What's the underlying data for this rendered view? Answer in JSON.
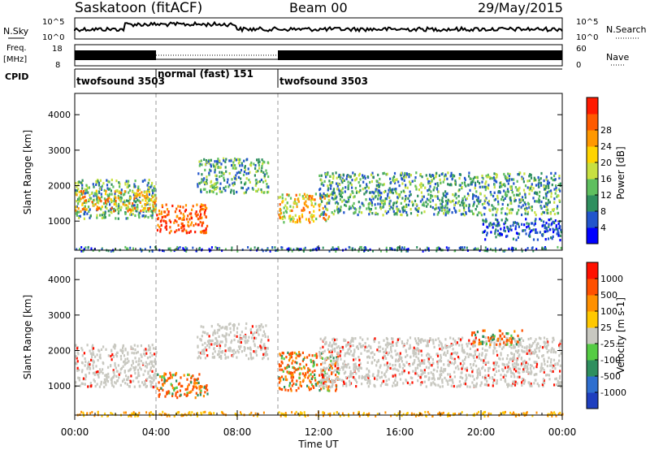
{
  "header": {
    "station": "Saskatoon (fitACF)",
    "beam": "Beam 00",
    "date": "29/May/2015"
  },
  "top_panels": {
    "nsky": {
      "label": "N.Sky",
      "ticks": [
        "10^5",
        "10^0"
      ]
    },
    "nsearch": {
      "label": "N.Search",
      "ticks": [
        "10^5",
        "10^0"
      ]
    },
    "freq": {
      "label_line1": "Freq.",
      "label_line2": "[MHz]",
      "ticks": [
        "18",
        "8"
      ]
    },
    "nave": {
      "label": "Nave",
      "ticks": [
        "60",
        "0"
      ]
    },
    "cpid": {
      "label": "CPID",
      "segments": [
        {
          "label": "twofsound 3503",
          "start": 0,
          "end": 4
        },
        {
          "label": "normal (fast) 151",
          "start": 4,
          "end": 10
        },
        {
          "label": "twofsound 3503",
          "start": 10,
          "end": 24
        }
      ]
    }
  },
  "chart_data": [
    {
      "type": "heatmap",
      "title": "",
      "quantity": "Power",
      "ylabel": "Slant Range [km]",
      "yticks": [
        1000,
        2000,
        3000,
        4000
      ],
      "ylim": [
        180,
        4600
      ],
      "xlim": [
        0,
        24
      ],
      "colorbar": {
        "label": "Power [dB]",
        "ticks": [
          "4",
          "8",
          "12",
          "16",
          "20",
          "24",
          "28"
        ],
        "colors": [
          "#0000ff",
          "#2255cc",
          "#2f8f5f",
          "#5fbf5f",
          "#c8e040",
          "#ffd400",
          "#ff9800",
          "#ff5a00",
          "#ff1a00"
        ]
      },
      "echo_regions": [
        {
          "t0": 0.0,
          "t1": 4.0,
          "r0": 1100,
          "r1": 2200,
          "level": "mid"
        },
        {
          "t0": 0.0,
          "t1": 4.0,
          "r0": 1300,
          "r1": 1900,
          "level": "high"
        },
        {
          "t0": 4.0,
          "t1": 6.5,
          "r0": 700,
          "r1": 1500,
          "level": "very-high"
        },
        {
          "t0": 6.0,
          "t1": 9.5,
          "r0": 1800,
          "r1": 2800,
          "level": "mid"
        },
        {
          "t0": 10.0,
          "t1": 12.5,
          "r0": 1000,
          "r1": 1800,
          "level": "high"
        },
        {
          "t0": 12.0,
          "t1": 24.0,
          "r0": 1200,
          "r1": 2400,
          "level": "mid"
        },
        {
          "t0": 20.0,
          "t1": 24.0,
          "r0": 500,
          "r1": 1100,
          "level": "low"
        }
      ]
    },
    {
      "type": "heatmap",
      "title": "",
      "quantity": "Velocity",
      "ylabel": "Slant Range [km]",
      "yticks": [
        1000,
        2000,
        3000,
        4000
      ],
      "ylim": [
        180,
        4600
      ],
      "xlim": [
        0,
        24
      ],
      "xlabel": "Time UT",
      "xticks": [
        "00:00",
        "04:00",
        "08:00",
        "12:00",
        "16:00",
        "20:00",
        "00:00"
      ],
      "colorbar": {
        "label": "Velocity [m s-1]",
        "ticks": [
          "1000",
          "500",
          "100",
          "25",
          "-25",
          "-100",
          "-500",
          "-1000"
        ],
        "colors": [
          "#1f3fbf",
          "#2f6fcf",
          "#2f8f5f",
          "#55cc44",
          "#c8c8c0",
          "#ffc800",
          "#ff9000",
          "#ff5000",
          "#ff1000"
        ]
      },
      "echo_regions": [
        {
          "t0": 0.0,
          "t1": 4.0,
          "r0": 1000,
          "r1": 2200,
          "level": "ground"
        },
        {
          "t0": 4.0,
          "t1": 6.5,
          "r0": 700,
          "r1": 1400,
          "level": "negative"
        },
        {
          "t0": 6.0,
          "t1": 9.5,
          "r0": 1800,
          "r1": 2800,
          "level": "ground"
        },
        {
          "t0": 10.0,
          "t1": 13.0,
          "r0": 900,
          "r1": 2000,
          "level": "negative"
        },
        {
          "t0": 12.0,
          "t1": 24.0,
          "r0": 1000,
          "r1": 2400,
          "level": "ground"
        },
        {
          "t0": 19.5,
          "t1": 22.0,
          "r0": 2200,
          "r1": 2600,
          "level": "negative"
        }
      ]
    }
  ]
}
